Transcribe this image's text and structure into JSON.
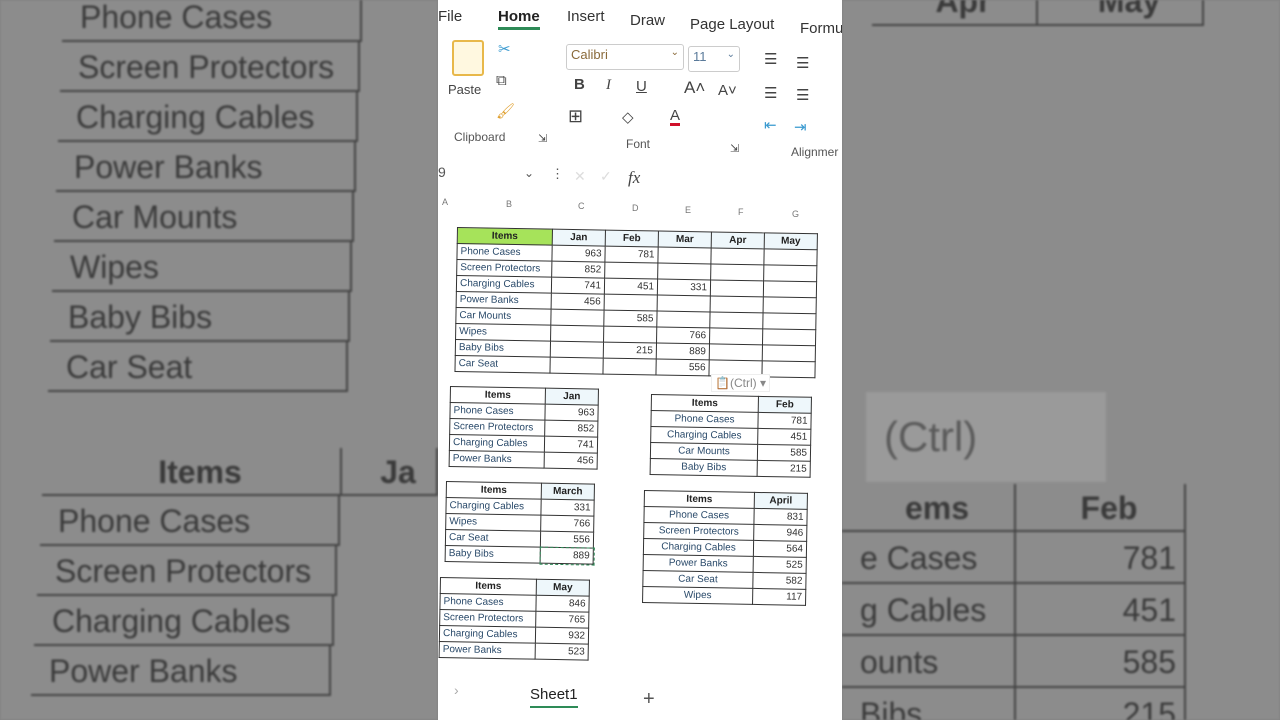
{
  "ribbon": {
    "tabs": [
      "File",
      "Home",
      "Insert",
      "Draw",
      "Page Layout",
      "Formu"
    ],
    "active_tab": "Home",
    "paste_label": "Paste",
    "clipboard_label": "Clipboard",
    "font_label": "Font",
    "alignment_label": "Alignmer",
    "font_name": "Calibri",
    "font_size": "11",
    "bold": "B",
    "italic": "I",
    "underline": "U",
    "font_color": "#d0102a"
  },
  "formula_bar": {
    "name_box": "9",
    "fx": "fx"
  },
  "columns": [
    "A",
    "B",
    "C",
    "D",
    "E",
    "F",
    "G"
  ],
  "main_table": {
    "headers": [
      "Items",
      "Jan",
      "Feb",
      "Mar",
      "Apr",
      "May"
    ],
    "header_color": "#a6e35a",
    "rows": [
      [
        "Phone Cases",
        "963",
        "781",
        "",
        "",
        ""
      ],
      [
        "Screen Protectors",
        "852",
        "",
        "",
        "",
        ""
      ],
      [
        "Charging Cables",
        "741",
        "451",
        "331",
        "",
        ""
      ],
      [
        "Power Banks",
        "456",
        "",
        "",
        "",
        ""
      ],
      [
        "Car Mounts",
        "",
        "585",
        "",
        "",
        ""
      ],
      [
        "Wipes",
        "",
        "",
        "766",
        "",
        ""
      ],
      [
        "Baby Bibs",
        "",
        "215",
        "889",
        "",
        ""
      ],
      [
        "Car Seat",
        "",
        "",
        "556",
        "",
        ""
      ]
    ]
  },
  "paste_options": {
    "label": "(Ctrl)"
  },
  "tables": [
    {
      "headers": [
        "Items",
        "Jan"
      ],
      "rows": [
        [
          "Phone Cases",
          "963"
        ],
        [
          "Screen Protectors",
          "852"
        ],
        [
          "Charging Cables",
          "741"
        ],
        [
          "Power Banks",
          "456"
        ]
      ]
    },
    {
      "headers": [
        "Items",
        "Feb"
      ],
      "rows": [
        [
          "Phone Cases",
          "781"
        ],
        [
          "Charging Cables",
          "451"
        ],
        [
          "Car Mounts",
          "585"
        ],
        [
          "Baby Bibs",
          "215"
        ]
      ]
    },
    {
      "headers": [
        "Items",
        "March"
      ],
      "rows": [
        [
          "Charging Cables",
          "331"
        ],
        [
          "Wipes",
          "766"
        ],
        [
          "Car Seat",
          "556"
        ],
        [
          "Baby Bibs",
          "889"
        ]
      ]
    },
    {
      "headers": [
        "Items",
        "April"
      ],
      "rows": [
        [
          "Phone Cases",
          "831"
        ],
        [
          "Screen Protectors",
          "946"
        ],
        [
          "Charging Cables",
          "564"
        ],
        [
          "Power Banks",
          "525"
        ],
        [
          "Car Seat",
          "582"
        ],
        [
          "Wipes",
          "117"
        ]
      ]
    },
    {
      "headers": [
        "Items",
        "May"
      ],
      "rows": [
        [
          "Phone Cases",
          "846"
        ],
        [
          "Screen Protectors",
          "765"
        ],
        [
          "Charging Cables",
          "932"
        ],
        [
          "Power Banks",
          "523"
        ]
      ]
    }
  ],
  "sheet_tabs": {
    "active": "Sheet1",
    "add": "+",
    "nav": "›"
  },
  "backdrop": {
    "left_top": [
      "Phone Cases",
      "Screen Protectors",
      "Charging Cables",
      "Power Banks",
      "Car Mounts",
      "Wipes",
      "Baby Bibs",
      "Car Seat"
    ],
    "left_bottom_header": [
      "Items",
      "Ja"
    ],
    "left_bottom": [
      "Phone Cases",
      "Screen Protectors",
      "Charging Cables",
      "Power Banks"
    ],
    "right_top_header": [
      "Apr",
      "May"
    ],
    "right_paste": "(Ctrl)",
    "right_bottom_header": [
      "ems",
      "Feb"
    ],
    "right_bottom": [
      [
        "e Cases",
        "781"
      ],
      [
        "g Cables",
        "451"
      ],
      [
        "ounts",
        "585"
      ],
      [
        "Bibs",
        "215"
      ]
    ]
  }
}
